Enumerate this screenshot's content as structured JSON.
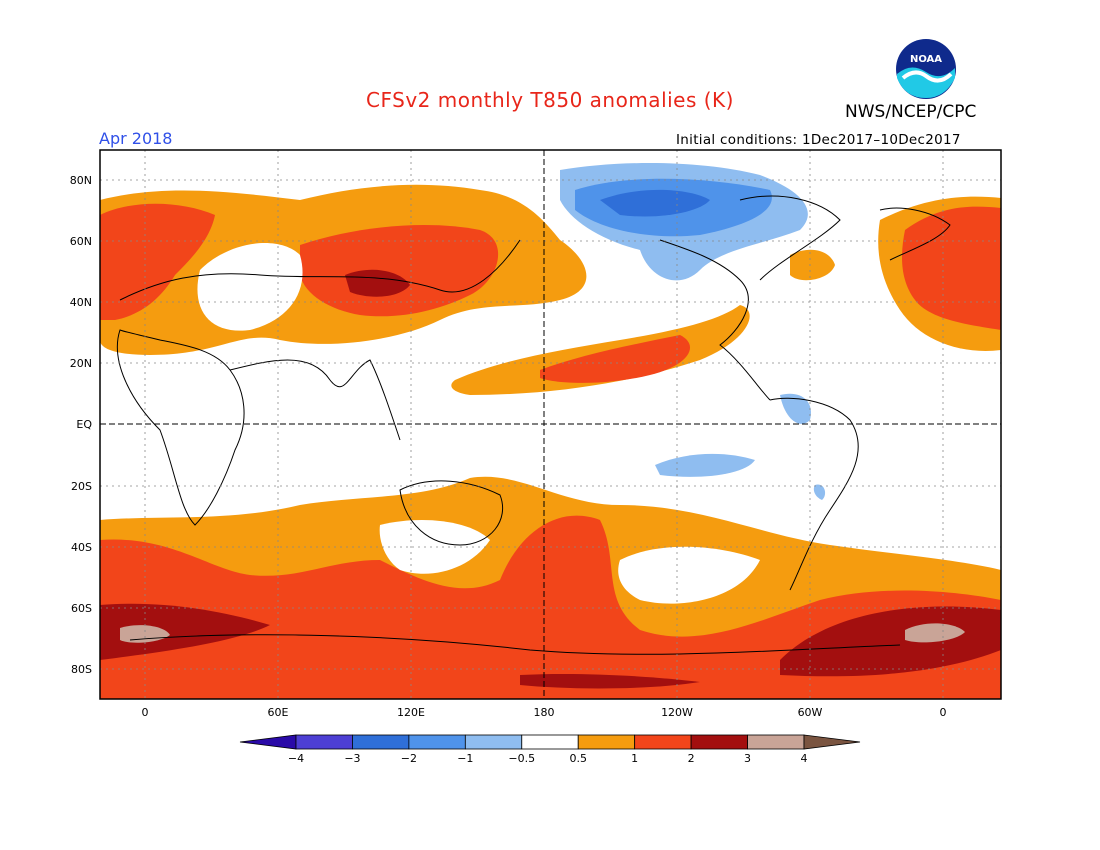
{
  "header": {
    "title": "CFSv2 monthly T850 anomalies (K)",
    "agency": "NWS/NCEP/CPC",
    "logo_text": "NOAA",
    "month": "Apr 2018",
    "initial_conditions": "Initial conditions: 1Dec2017–10Dec2017"
  },
  "map": {
    "lat_labels": [
      "80N",
      "60N",
      "40N",
      "20N",
      "EQ",
      "20S",
      "40S",
      "60S",
      "80S"
    ],
    "lon_labels": [
      "0",
      "60E",
      "120E",
      "180",
      "120W",
      "60W",
      "0"
    ]
  },
  "colorbar": {
    "labels": [
      "−4",
      "−3",
      "−2",
      "−1",
      "−0.5",
      "0.5",
      "1",
      "2",
      "3",
      "4"
    ],
    "colors": [
      "#2a0aa8",
      "#4d3fd4",
      "#2f6fd8",
      "#4f93ea",
      "#8fbdf0",
      "#ffffff",
      "#f59c0f",
      "#f2451a",
      "#a30f0f",
      "#c9a497",
      "#7a5440"
    ]
  }
}
